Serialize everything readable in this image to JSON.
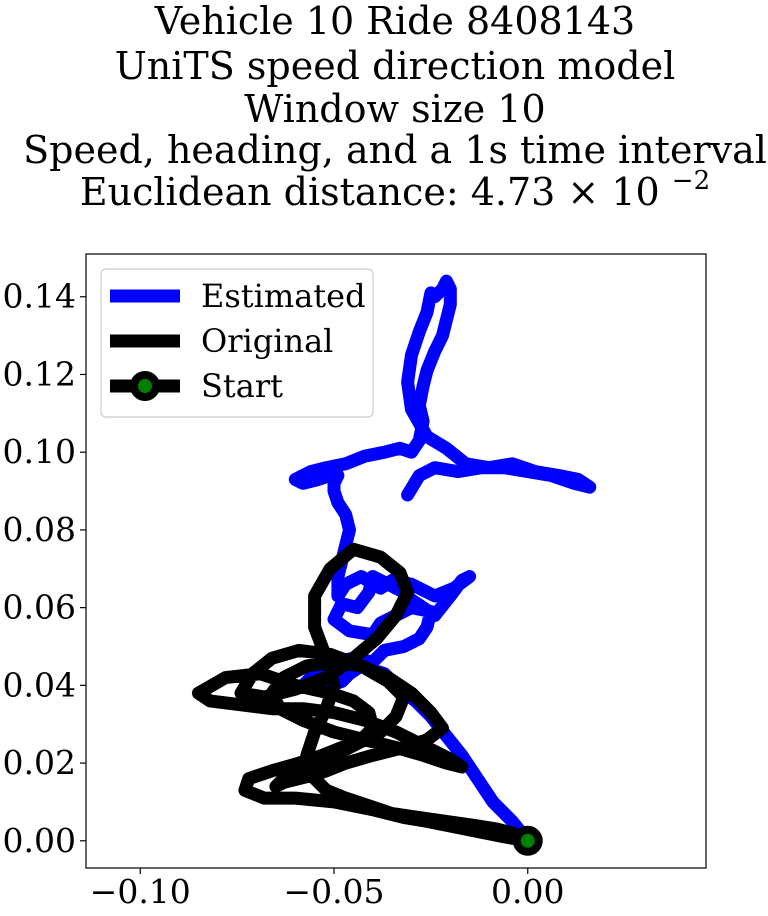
{
  "chart_data": {
    "type": "line",
    "title_lines": [
      "Vehicle 10 Ride 8408143",
      "UniTS speed direction model",
      "Window size 10",
      "Speed, heading, and a 1s time interval"
    ],
    "title_metric_prefix": "Euclidean distance: ",
    "title_metric_mantissa": "4.73",
    "title_metric_base": "10",
    "title_metric_exponent": "−2",
    "xlabel": "",
    "ylabel": "",
    "xlim": [
      -0.114,
      0.046
    ],
    "ylim": [
      -0.007,
      0.151
    ],
    "xticks": [
      -0.1,
      -0.05,
      0.0
    ],
    "xtick_labels": [
      "−0.10",
      "−0.05",
      "0.00"
    ],
    "yticks": [
      0.0,
      0.02,
      0.04,
      0.06,
      0.08,
      0.1,
      0.12,
      0.14
    ],
    "ytick_labels": [
      "0.00",
      "0.02",
      "0.04",
      "0.06",
      "0.08",
      "0.10",
      "0.12",
      "0.14"
    ],
    "grid": false,
    "legend_position": "top-left",
    "series": [
      {
        "name": "Estimated",
        "color": "#0000ff",
        "x": [
          0.0,
          -0.004,
          -0.009,
          -0.013,
          -0.017,
          -0.021,
          -0.025,
          -0.029,
          -0.033,
          -0.037,
          -0.04,
          -0.043,
          -0.046,
          -0.048,
          -0.051,
          -0.054,
          -0.058,
          -0.055,
          -0.05,
          -0.045,
          -0.04,
          -0.037,
          -0.032,
          -0.028,
          -0.026,
          -0.025,
          -0.03,
          -0.034,
          -0.038,
          -0.04,
          -0.046,
          -0.05,
          -0.048,
          -0.044,
          -0.041,
          -0.04,
          -0.036,
          -0.032,
          -0.03,
          -0.027,
          -0.024,
          -0.02,
          -0.017,
          -0.015,
          -0.019,
          -0.024,
          -0.03,
          -0.035,
          -0.038,
          -0.043,
          -0.047,
          -0.049,
          -0.049,
          -0.048,
          -0.047,
          -0.046,
          -0.047,
          -0.049,
          -0.05,
          -0.05,
          -0.049,
          -0.051,
          -0.054,
          -0.058,
          -0.06,
          -0.056,
          -0.052,
          -0.047,
          -0.042,
          -0.037,
          -0.033,
          -0.03,
          -0.028,
          -0.027,
          -0.028,
          -0.027,
          -0.026,
          -0.024,
          -0.022,
          -0.021,
          -0.02,
          -0.02,
          -0.021,
          -0.022,
          -0.024,
          -0.025,
          -0.026,
          -0.028,
          -0.03,
          -0.031,
          -0.03,
          -0.026,
          -0.021,
          -0.016,
          -0.01,
          -0.004,
          0.002,
          0.008,
          0.013,
          0.016,
          0.012,
          0.006,
          0.0,
          -0.006,
          -0.012,
          -0.018,
          -0.024,
          -0.028,
          -0.031
        ],
        "y": [
          0.0,
          0.005,
          0.01,
          0.016,
          0.022,
          0.027,
          0.032,
          0.036,
          0.039,
          0.043,
          0.044,
          0.045,
          0.043,
          0.041,
          0.04,
          0.041,
          0.04,
          0.043,
          0.046,
          0.047,
          0.046,
          0.049,
          0.05,
          0.052,
          0.055,
          0.059,
          0.06,
          0.058,
          0.056,
          0.053,
          0.054,
          0.057,
          0.061,
          0.06,
          0.064,
          0.068,
          0.066,
          0.064,
          0.062,
          0.06,
          0.058,
          0.063,
          0.067,
          0.068,
          0.065,
          0.063,
          0.066,
          0.067,
          0.065,
          0.068,
          0.066,
          0.063,
          0.068,
          0.072,
          0.076,
          0.08,
          0.084,
          0.087,
          0.09,
          0.092,
          0.094,
          0.094,
          0.093,
          0.092,
          0.093,
          0.095,
          0.096,
          0.097,
          0.099,
          0.1,
          0.101,
          0.1,
          0.103,
          0.108,
          0.112,
          0.117,
          0.121,
          0.126,
          0.13,
          0.134,
          0.138,
          0.142,
          0.144,
          0.142,
          0.14,
          0.141,
          0.136,
          0.131,
          0.125,
          0.118,
          0.111,
          0.104,
          0.101,
          0.097,
          0.096,
          0.097,
          0.095,
          0.094,
          0.093,
          0.091,
          0.092,
          0.094,
          0.095,
          0.096,
          0.096,
          0.095,
          0.096,
          0.094,
          0.089
        ]
      },
      {
        "name": "Original",
        "color": "#000000",
        "x": [
          0.0,
          -0.006,
          -0.011,
          -0.016,
          -0.021,
          -0.026,
          -0.032,
          -0.04,
          -0.05,
          -0.06,
          -0.068,
          -0.073,
          -0.072,
          -0.066,
          -0.059,
          -0.053,
          -0.048,
          -0.043,
          -0.04,
          -0.041,
          -0.045,
          -0.051,
          -0.06,
          -0.069,
          -0.078,
          -0.085,
          -0.082,
          -0.074,
          -0.066,
          -0.058,
          -0.05,
          -0.042,
          -0.034,
          -0.026,
          -0.02,
          -0.017,
          -0.021,
          -0.027,
          -0.034,
          -0.042,
          -0.05,
          -0.058,
          -0.064,
          -0.066,
          -0.063,
          -0.057,
          -0.05,
          -0.043,
          -0.036,
          -0.03,
          -0.025,
          -0.022,
          -0.026,
          -0.032,
          -0.04,
          -0.047,
          -0.052,
          -0.055,
          -0.059,
          -0.063,
          -0.065,
          -0.063,
          -0.057,
          -0.05,
          -0.044,
          -0.038,
          -0.034,
          -0.032,
          -0.036,
          -0.043,
          -0.051,
          -0.059,
          -0.066,
          -0.071,
          -0.074,
          -0.068,
          -0.06,
          -0.052,
          -0.045,
          -0.039,
          -0.034,
          -0.031,
          -0.033,
          -0.038,
          -0.045,
          -0.051,
          -0.055,
          -0.055,
          -0.052,
          -0.05,
          -0.052,
          -0.055,
          -0.057,
          -0.056,
          -0.052,
          -0.047,
          -0.041,
          -0.035,
          -0.028,
          -0.021,
          -0.014,
          -0.008,
          -0.004,
          0.0
        ],
        "y": [
          0.0,
          0.001,
          0.002,
          0.003,
          0.004,
          0.005,
          0.006,
          0.008,
          0.01,
          0.011,
          0.011,
          0.013,
          0.016,
          0.018,
          0.02,
          0.022,
          0.024,
          0.026,
          0.029,
          0.033,
          0.036,
          0.038,
          0.04,
          0.043,
          0.042,
          0.038,
          0.036,
          0.035,
          0.034,
          0.034,
          0.033,
          0.031,
          0.028,
          0.024,
          0.021,
          0.019,
          0.02,
          0.022,
          0.024,
          0.026,
          0.028,
          0.031,
          0.034,
          0.038,
          0.042,
          0.045,
          0.046,
          0.045,
          0.042,
          0.038,
          0.033,
          0.029,
          0.026,
          0.024,
          0.022,
          0.02,
          0.018,
          0.017,
          0.016,
          0.015,
          0.014,
          0.016,
          0.019,
          0.022,
          0.025,
          0.028,
          0.032,
          0.037,
          0.041,
          0.045,
          0.048,
          0.049,
          0.047,
          0.043,
          0.038,
          0.037,
          0.039,
          0.042,
          0.047,
          0.052,
          0.058,
          0.064,
          0.069,
          0.073,
          0.075,
          0.07,
          0.063,
          0.055,
          0.047,
          0.04,
          0.034,
          0.028,
          0.022,
          0.017,
          0.013,
          0.011,
          0.009,
          0.007,
          0.006,
          0.005,
          0.004,
          0.003,
          0.002,
          0.0
        ]
      }
    ],
    "start_point": {
      "name": "Start",
      "x": 0.0,
      "y": 0.0,
      "marker_color": "#008000",
      "edge_color": "#000000"
    },
    "legend": [
      {
        "label": "Estimated",
        "color": "#0000ff",
        "marker": false
      },
      {
        "label": "Original",
        "color": "#000000",
        "marker": false
      },
      {
        "label": "Start",
        "color": "#000000",
        "marker": true,
        "marker_color": "#008000"
      }
    ]
  }
}
